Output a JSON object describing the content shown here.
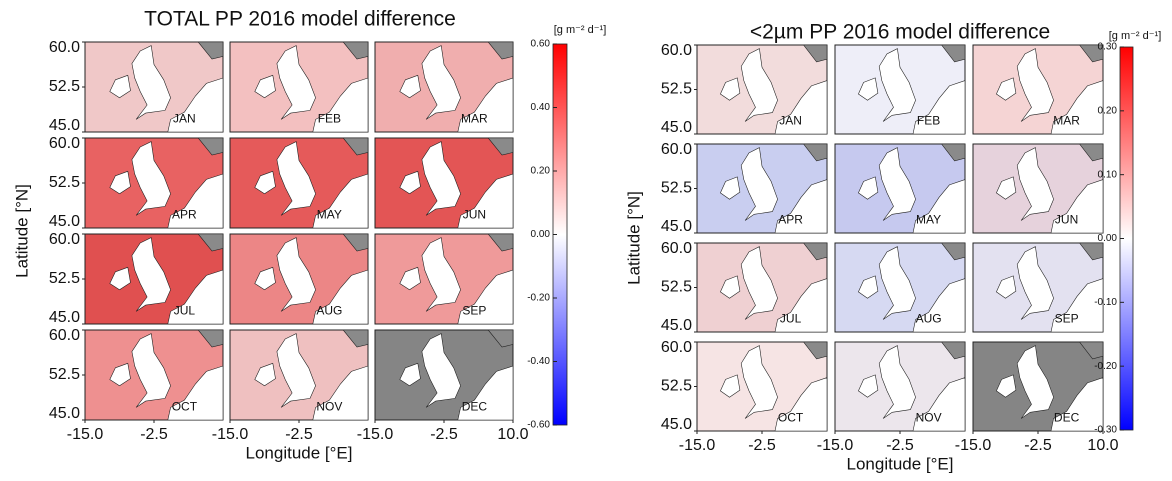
{
  "figures": [
    {
      "title": "TOTAL PP 2016 model difference",
      "y_label": "Latitude [°N]",
      "x_label": "Longitude [°E]",
      "unit": "[g m⁻² d⁻¹]",
      "yticks": [
        {
          "value": 60,
          "label": "60.0"
        },
        {
          "value": 52.5,
          "label": "52.5"
        },
        {
          "value": 45,
          "label": "45.0"
        }
      ],
      "ylim": [
        45,
        60
      ],
      "xticks": [
        {
          "value": -15,
          "label": "-15.0"
        },
        {
          "value": -2.5,
          "label": "-2.5"
        },
        {
          "value": 10,
          "label": "10.0"
        }
      ],
      "xlim": [
        -15,
        10
      ],
      "colorbar": {
        "lim": [
          -0.6,
          0.6
        ],
        "colors": [
          "#0000ff",
          "#ffffff",
          "#ff0000"
        ],
        "ticks": [
          {
            "value": 0.6,
            "label": "0.60"
          },
          {
            "value": 0.4,
            "label": "0.40"
          },
          {
            "value": 0.2,
            "label": "0.20"
          },
          {
            "value": 0,
            "label": "0.00"
          },
          {
            "value": -0.2,
            "label": "-0.20"
          },
          {
            "value": -0.4,
            "label": "-0.40"
          },
          {
            "value": -0.6,
            "label": "-0.60"
          }
        ]
      },
      "panels": [
        {
          "month": "JAN",
          "color": "#f0c8c8"
        },
        {
          "month": "FEB",
          "color": "#f3c0c0"
        },
        {
          "month": "MAR",
          "color": "#f0aeae"
        },
        {
          "month": "APR",
          "color": "#e86262"
        },
        {
          "month": "MAY",
          "color": "#e55a5a"
        },
        {
          "month": "JUN",
          "color": "#e35555"
        },
        {
          "month": "JUL",
          "color": "#e05050"
        },
        {
          "month": "AUG",
          "color": "#ec8686"
        },
        {
          "month": "SEP",
          "color": "#ef9a9a"
        },
        {
          "month": "OCT",
          "color": "#ee9090"
        },
        {
          "month": "NOV",
          "color": "#efc0c0"
        },
        {
          "month": "DEC",
          "color": "#858585"
        }
      ]
    },
    {
      "title": "<2µm PP 2016 model difference",
      "y_label": "Latitude [°N]",
      "x_label": "Longitude [°E]",
      "unit": "[g m⁻² d⁻¹]",
      "yticks": [
        {
          "value": 60,
          "label": "60.0"
        },
        {
          "value": 52.5,
          "label": "52.5"
        },
        {
          "value": 45,
          "label": "45.0"
        }
      ],
      "ylim": [
        45,
        60
      ],
      "xticks": [
        {
          "value": -15,
          "label": "-15.0"
        },
        {
          "value": -2.5,
          "label": "-2.5"
        },
        {
          "value": 10,
          "label": "10.0"
        }
      ],
      "xlim": [
        -15,
        10
      ],
      "colorbar": {
        "lim": [
          -0.3,
          0.3
        ],
        "colors": [
          "#0000ff",
          "#ffffff",
          "#ff0000"
        ],
        "ticks": [
          {
            "value": 0.3,
            "label": "0.30"
          },
          {
            "value": 0.2,
            "label": "0.20"
          },
          {
            "value": 0.1,
            "label": "0.10"
          },
          {
            "value": 0,
            "label": "0.00"
          },
          {
            "value": -0.1,
            "label": "-0.10"
          },
          {
            "value": -0.2,
            "label": "-0.20"
          },
          {
            "value": -0.3,
            "label": "-0.30"
          }
        ]
      },
      "panels": [
        {
          "month": "JAN",
          "color": "#f2dcdc"
        },
        {
          "month": "FEB",
          "color": "#eeeef8"
        },
        {
          "month": "MAR",
          "color": "#f5d4d4"
        },
        {
          "month": "APR",
          "color": "#c9cef0"
        },
        {
          "month": "MAY",
          "color": "#c6c9ef"
        },
        {
          "month": "JUN",
          "color": "#e6d2dc"
        },
        {
          "month": "JUL",
          "color": "#efd0d2"
        },
        {
          "month": "AUG",
          "color": "#d6d9f2"
        },
        {
          "month": "SEP",
          "color": "#e3e1f0"
        },
        {
          "month": "OCT",
          "color": "#f6e4e4"
        },
        {
          "month": "NOV",
          "color": "#ece6ec"
        },
        {
          "month": "DEC",
          "color": "#858585"
        }
      ]
    }
  ]
}
